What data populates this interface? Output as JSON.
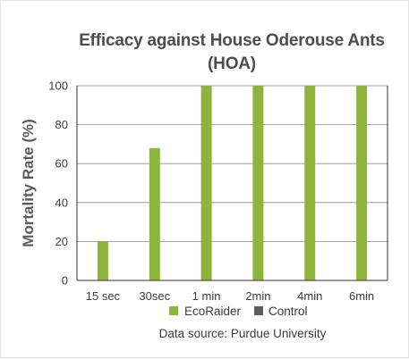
{
  "colors": {
    "series_ecoraider": "#8db53c",
    "series_control": "#5e5e5e",
    "grid": "#8c8c8c",
    "axis": "#333333"
  },
  "chart_data": {
    "type": "bar",
    "title_lines": [
      "Efficacy against House Oderouse Ants",
      "(HOA)"
    ],
    "xlabel": "",
    "ylabel": "Mortality Rate (%)",
    "ylim": [
      0,
      100
    ],
    "yticks": [
      0,
      20,
      40,
      60,
      80,
      100
    ],
    "grid": true,
    "categories": [
      "15 sec",
      "30sec",
      "1 min",
      "2min",
      "4min",
      "6min"
    ],
    "series": [
      {
        "name": "EcoRaider",
        "values": [
          20,
          68,
          100,
          100,
          100,
          100
        ]
      },
      {
        "name": "Control",
        "values": [
          0,
          0,
          0,
          0,
          0,
          0
        ]
      }
    ],
    "legend_position": "bottom-center",
    "source": "Data source: Purdue University"
  }
}
